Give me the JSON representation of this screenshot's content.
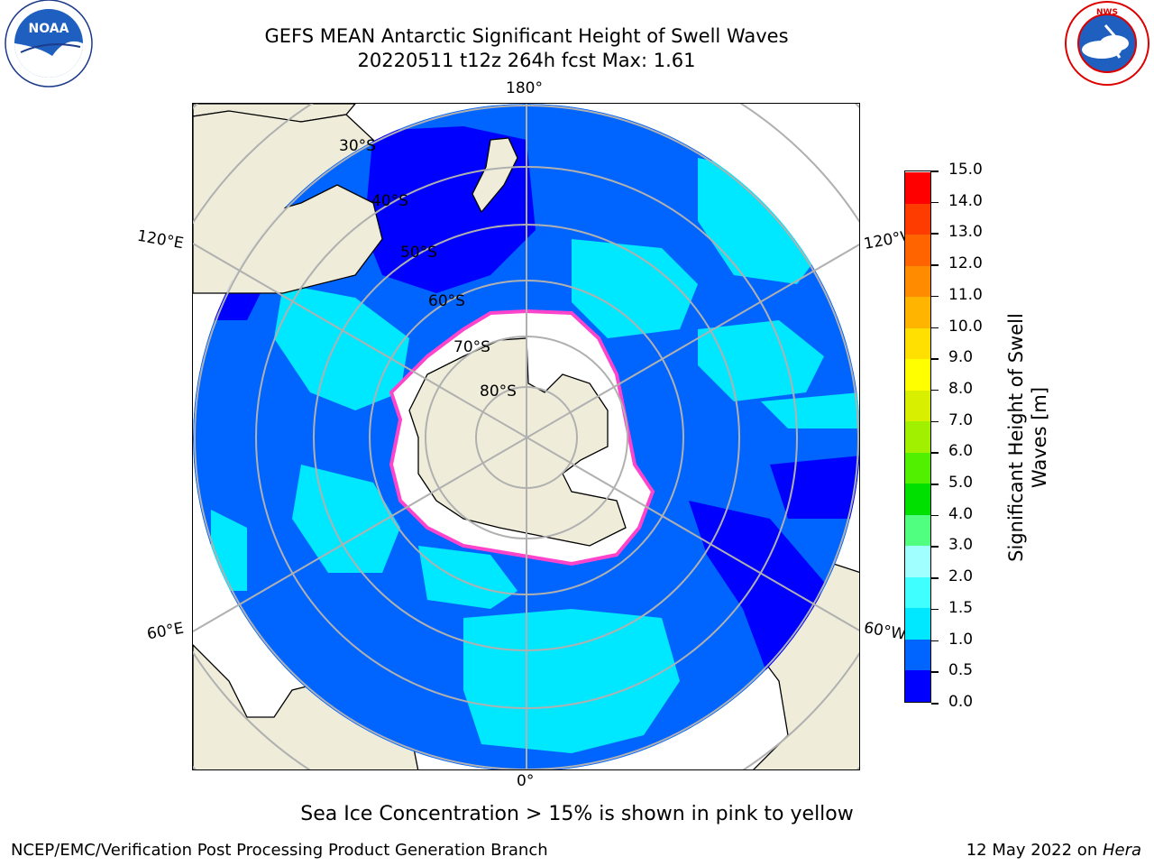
{
  "header": {
    "title_line1": "GEFS MEAN Antarctic Significant Height of Swell Waves",
    "title_line2": "20220511 t12z 264h fcst   Max: 1.61"
  },
  "logos": {
    "left": "NOAA",
    "left_ring": "NATIONAL OCEANIC AND ATMOSPHERIC ADMINISTRATION · U.S. DEPARTMENT OF COMMERCE",
    "right_ring": "NATIONAL WEATHER SERVICE"
  },
  "map": {
    "longitude_labels": {
      "top": "180°",
      "bottom": "0°",
      "upper_left": "120°E",
      "upper_right": "120°W",
      "lower_left": "60°E",
      "lower_right": "60°W"
    },
    "latitude_labels": [
      "30°S",
      "40°S",
      "50°S",
      "60°S",
      "70°S",
      "80°S"
    ]
  },
  "colorbar": {
    "label": "Significant Height of Swell Waves [m]",
    "ticks": [
      "0.0",
      "0.5",
      "1.0",
      "1.5",
      "2.0",
      "3.0",
      "4.0",
      "5.0",
      "6.0",
      "7.0",
      "8.0",
      "9.0",
      "10.0",
      "11.0",
      "12.0",
      "13.0",
      "14.0",
      "15.0"
    ],
    "colors": [
      "#0000ff",
      "#0064ff",
      "#00e8ff",
      "#40ffff",
      "#a0ffff",
      "#50ff80",
      "#00e000",
      "#50f000",
      "#a0f000",
      "#d8f000",
      "#ffff00",
      "#ffe000",
      "#ffb400",
      "#ff8c00",
      "#ff6400",
      "#ff3c00",
      "#ff0000"
    ]
  },
  "colors": {
    "land": "#efedda",
    "ocean_main": "#0064ff",
    "ocean_low": "#0000ff",
    "ocean_mid": "#00e8ff",
    "ice": "#ffffff",
    "ice_edge": "#ff44cc",
    "grid": "#b0b0b0"
  },
  "caption": "Sea Ice Concentration > 15% is shown in pink to yellow",
  "footer": {
    "left": "NCEP/EMC/Verification Post Processing Product Generation Branch",
    "right_date": "12 May 2022 on ",
    "right_host": "Hera"
  }
}
